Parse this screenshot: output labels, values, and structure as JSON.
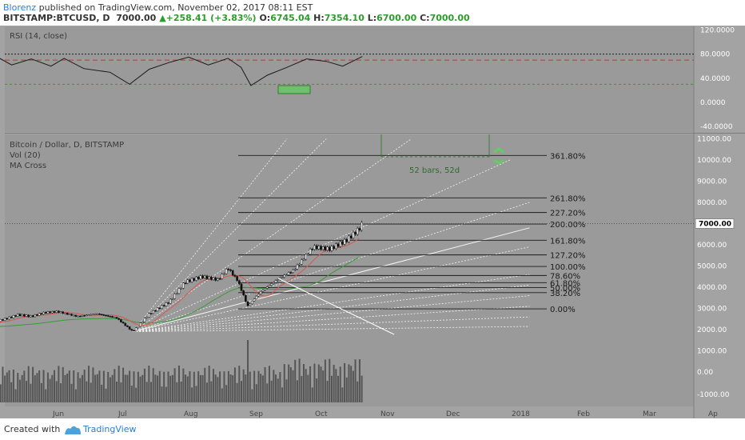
{
  "header": {
    "author": "Blorenz",
    "published_text": " published on TradingView.com, November 02, 2017 08:11 EST",
    "symbol": "BITSTAMP:BTCUSD, D",
    "last": "7000.00",
    "change": "+258.41 (+3.83%)",
    "o_label": "O:",
    "o_value": "6745.04",
    "h_label": "H:",
    "h_value": "7354.10",
    "l_label": "L:",
    "l_value": "6700.00",
    "c_label": "C:",
    "c_value": "7000.00"
  },
  "rsi_panel": {
    "title": "RSI (14, close)",
    "ticks": [
      "120.0000",
      "80.0000",
      "40.0000",
      "0.0000",
      "-40.0000"
    ],
    "overbought": 70,
    "oversold": 30
  },
  "main_panel": {
    "title": "Bitcoin / Dollar, D, BITSTAMP",
    "vol": "Vol (20)",
    "ma": "MA Cross",
    "price_ticks": [
      "11000.00",
      "10000.00",
      "9000.00",
      "8000.00",
      "6000.00",
      "5000.00",
      "4000.00",
      "3000.00",
      "2000.00",
      "1000.00",
      "0.00",
      "-1000.00"
    ],
    "last_price_label": "7000.00",
    "last_price": 7000,
    "bars_label": "52 bars, 52d",
    "fib_labels": [
      "361.80%",
      "261.80%",
      "227.20%",
      "200.00%",
      "161.80%",
      "127.20%",
      "100.00%",
      "78.60%",
      "61.80%",
      "50.00%",
      "38.20%",
      "0.00%"
    ]
  },
  "chart_data": {
    "type": "candlestick",
    "title": "Bitcoin / Dollar, D, BITSTAMP",
    "x_labels": [
      "Jun",
      "Jul",
      "Aug",
      "Sep",
      "Oct",
      "Nov",
      "Dec",
      "2018",
      "Feb",
      "Mar",
      "Ap"
    ],
    "y_range": [
      -1000,
      11000
    ],
    "fib_retracement": {
      "base_price": 2980,
      "top_price": 4980,
      "levels": [
        {
          "ratio": 0.0,
          "price": 2980
        },
        {
          "ratio": 0.382,
          "price": 3744
        },
        {
          "ratio": 0.5,
          "price": 3980
        },
        {
          "ratio": 0.618,
          "price": 4216
        },
        {
          "ratio": 0.786,
          "price": 4552
        },
        {
          "ratio": 1.0,
          "price": 4980
        },
        {
          "ratio": 1.272,
          "price": 5524
        },
        {
          "ratio": 1.618,
          "price": 6216
        },
        {
          "ratio": 2.0,
          "price": 6980
        },
        {
          "ratio": 2.272,
          "price": 7524
        },
        {
          "ratio": 2.618,
          "price": 8216
        },
        {
          "ratio": 3.618,
          "price": 10216
        }
      ]
    },
    "price_series": [
      {
        "month": 5.0,
        "price": 2330
      },
      {
        "month": 5.2,
        "price": 2500
      },
      {
        "month": 5.4,
        "price": 2700
      },
      {
        "month": 5.6,
        "price": 2620
      },
      {
        "month": 5.8,
        "price": 2800
      },
      {
        "month": 6.0,
        "price": 2850
      },
      {
        "month": 6.3,
        "price": 2620
      },
      {
        "month": 6.6,
        "price": 2750
      },
      {
        "month": 6.9,
        "price": 2550
      },
      {
        "month": 7.15,
        "price": 1900
      },
      {
        "month": 7.4,
        "price": 2750
      },
      {
        "month": 7.7,
        "price": 3300
      },
      {
        "month": 7.95,
        "price": 4250
      },
      {
        "month": 8.2,
        "price": 4500
      },
      {
        "month": 8.45,
        "price": 4350
      },
      {
        "month": 8.6,
        "price": 4900
      },
      {
        "month": 8.75,
        "price": 4300
      },
      {
        "month": 8.9,
        "price": 3100
      },
      {
        "month": 9.1,
        "price": 3800
      },
      {
        "month": 9.35,
        "price": 4350
      },
      {
        "month": 9.6,
        "price": 4800
      },
      {
        "month": 9.9,
        "price": 5900
      },
      {
        "month": 10.15,
        "price": 5800
      },
      {
        "month": 10.4,
        "price": 6200
      },
      {
        "month": 10.6,
        "price": 6745
      },
      {
        "month": 10.65,
        "price": 7000
      }
    ],
    "rsi_series": [
      {
        "month": 5.0,
        "rsi": 80
      },
      {
        "month": 5.3,
        "rsi": 62
      },
      {
        "month": 5.6,
        "rsi": 72
      },
      {
        "month": 5.9,
        "rsi": 60
      },
      {
        "month": 6.1,
        "rsi": 73
      },
      {
        "month": 6.4,
        "rsi": 56
      },
      {
        "month": 6.8,
        "rsi": 50
      },
      {
        "month": 7.1,
        "rsi": 30
      },
      {
        "month": 7.4,
        "rsi": 55
      },
      {
        "month": 7.7,
        "rsi": 66
      },
      {
        "month": 8.0,
        "rsi": 75
      },
      {
        "month": 8.3,
        "rsi": 62
      },
      {
        "month": 8.6,
        "rsi": 73
      },
      {
        "month": 8.8,
        "rsi": 58
      },
      {
        "month": 8.95,
        "rsi": 28
      },
      {
        "month": 9.2,
        "rsi": 45
      },
      {
        "month": 9.5,
        "rsi": 58
      },
      {
        "month": 9.8,
        "rsi": 72
      },
      {
        "month": 10.1,
        "rsi": 68
      },
      {
        "month": 10.35,
        "rsi": 60
      },
      {
        "month": 10.65,
        "rsi": 76
      }
    ]
  }
}
